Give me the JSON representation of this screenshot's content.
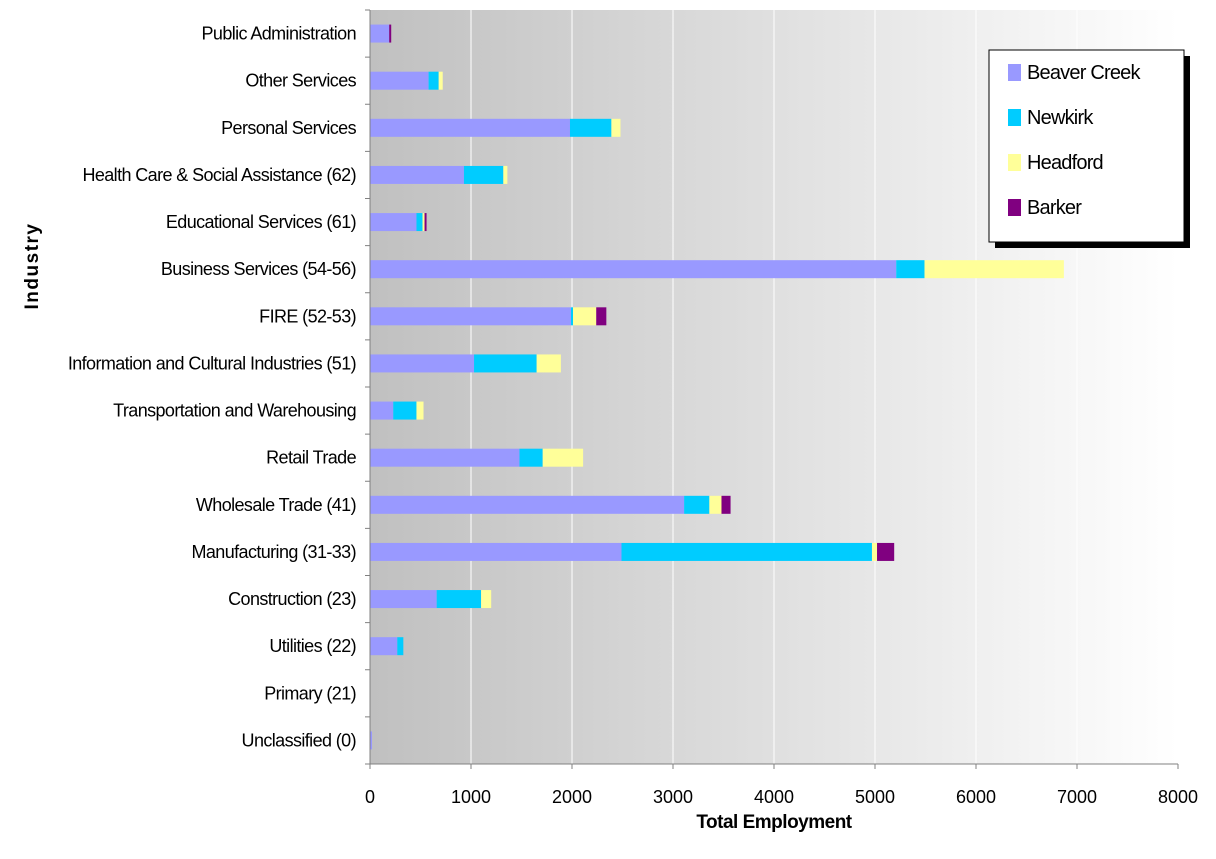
{
  "colors": {
    "plot_gradient_start": "#c0c0c0",
    "plot_gradient_end": "#ffffff",
    "gridline": "#ffffff",
    "axis": "#808080"
  },
  "chart_data": {
    "type": "bar",
    "orientation": "horizontal",
    "stacked": true,
    "title": "",
    "xlabel": "Total Employment",
    "ylabel": "Industry",
    "xlim": [
      0,
      8000
    ],
    "x_ticks": [
      0,
      1000,
      2000,
      3000,
      4000,
      5000,
      6000,
      7000,
      8000
    ],
    "grid": "vertical",
    "legend_position": "top-right",
    "categories": [
      "Public Administration",
      "Other Services",
      "Personal Services",
      "Health Care & Social Assistance (62)",
      "Educational Services (61)",
      "Business Services (54-56)",
      "FIRE (52-53)",
      "Information and Cultural Industries (51)",
      "Transportation and Warehousing",
      "Retail Trade",
      "Wholesale Trade (41)",
      "Manufacturing (31-33)",
      "Construction (23)",
      "Utilities (22)",
      "Primary (21)",
      "Unclassified (0)"
    ],
    "series": [
      {
        "name": "Beaver Creek",
        "color": "#9999ff",
        "values": [
          190,
          580,
          1980,
          930,
          460,
          5210,
          1990,
          1030,
          230,
          1480,
          3110,
          2490,
          660,
          270,
          0,
          20
        ]
      },
      {
        "name": "Newkirk",
        "color": "#00ccff",
        "values": [
          0,
          100,
          410,
          390,
          60,
          280,
          20,
          620,
          230,
          230,
          250,
          2480,
          440,
          60,
          0,
          0
        ]
      },
      {
        "name": "Headford",
        "color": "#ffff99",
        "values": [
          0,
          40,
          90,
          40,
          20,
          1380,
          230,
          240,
          70,
          400,
          120,
          50,
          100,
          0,
          0,
          0
        ]
      },
      {
        "name": "Barker",
        "color": "#800080",
        "values": [
          20,
          0,
          0,
          0,
          20,
          0,
          100,
          0,
          0,
          0,
          90,
          170,
          0,
          0,
          0,
          0
        ]
      }
    ]
  }
}
